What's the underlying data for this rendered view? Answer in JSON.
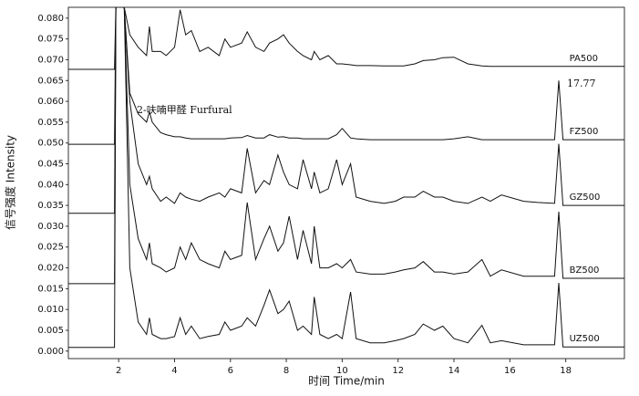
{
  "chart_data": {
    "type": "line",
    "xlabel": "时间 Time/min",
    "ylabel": "信号强度 Intensity",
    "annotations": [
      "2-呋喃甲醛  Furfural",
      "17.77"
    ],
    "xlim": [
      0.2,
      20.1
    ],
    "ylim": [
      -0.0018,
      0.0826
    ],
    "xticks": [
      2,
      4,
      6,
      8,
      10,
      12,
      14,
      16,
      18
    ],
    "yticks": [
      {
        "value": 0,
        "label": "0.000"
      },
      {
        "value": 0.005,
        "label": "0.005"
      },
      {
        "value": 0.01,
        "label": "0.010"
      },
      {
        "value": 0.015,
        "label": "0.015"
      },
      {
        "value": 0.02,
        "label": "0.020"
      },
      {
        "value": 0.025,
        "label": "0.025"
      },
      {
        "value": 0.03,
        "label": "0.030"
      },
      {
        "value": 0.035,
        "label": "0.035"
      },
      {
        "value": 0.04,
        "label": "0.040"
      },
      {
        "value": 0.045,
        "label": "0.045"
      },
      {
        "value": 0.05,
        "label": "0.050"
      },
      {
        "value": 0.055,
        "label": "0.055"
      },
      {
        "value": 0.06,
        "label": "0.060"
      },
      {
        "value": 0.065,
        "label": "0.065"
      },
      {
        "value": 0.07,
        "label": "0.070"
      },
      {
        "value": 0.075,
        "label": "0.075"
      },
      {
        "value": 0.08,
        "label": "0.080"
      }
    ],
    "grid": false,
    "x": [
      0.2,
      1.85,
      1.9,
      2.2,
      2.4,
      2.7,
      3.0,
      3.1,
      3.2,
      3.5,
      3.7,
      4.0,
      4.2,
      4.4,
      4.6,
      4.9,
      5.2,
      5.6,
      5.8,
      6.0,
      6.4,
      6.6,
      6.9,
      7.2,
      7.4,
      7.7,
      7.9,
      8.1,
      8.4,
      8.6,
      8.9,
      9.0,
      9.2,
      9.5,
      9.8,
      10.0,
      10.3,
      10.5,
      11.0,
      11.5,
      11.9,
      12.2,
      12.6,
      12.9,
      13.3,
      13.6,
      14.0,
      14.5,
      15.0,
      15.3,
      15.7,
      16.5,
      17.0,
      17.6,
      17.75,
      17.9,
      18.2,
      20.1
    ],
    "series": [
      {
        "name": "PA500",
        "color": "#111111",
        "values": [
          0.0677,
          0.0677,
          0.0826,
          0.0826,
          0.076,
          0.073,
          0.071,
          0.078,
          0.072,
          0.072,
          0.071,
          0.073,
          0.082,
          0.076,
          0.077,
          0.072,
          0.073,
          0.071,
          0.075,
          0.073,
          0.074,
          0.0767,
          0.073,
          0.072,
          0.074,
          0.075,
          0.076,
          0.074,
          0.072,
          0.071,
          0.07,
          0.072,
          0.07,
          0.071,
          0.069,
          0.069,
          0.0688,
          0.0686,
          0.0686,
          0.0685,
          0.0685,
          0.0685,
          0.069,
          0.0698,
          0.07,
          0.0705,
          0.0706,
          0.069,
          0.0685,
          0.0684,
          0.0684,
          0.0684,
          0.0684,
          0.0684,
          0.0684,
          0.0684,
          0.0684,
          0.0684
        ]
      },
      {
        "name": "FZ500",
        "color": "#111111",
        "values": [
          0.0497,
          0.0497,
          0.0826,
          0.0826,
          0.062,
          0.057,
          0.055,
          0.0575,
          0.055,
          0.0525,
          0.052,
          0.0515,
          0.0515,
          0.0512,
          0.051,
          0.051,
          0.051,
          0.051,
          0.051,
          0.0512,
          0.0513,
          0.0518,
          0.0512,
          0.0512,
          0.052,
          0.0514,
          0.0515,
          0.0512,
          0.0512,
          0.051,
          0.051,
          0.051,
          0.051,
          0.051,
          0.052,
          0.0535,
          0.0512,
          0.051,
          0.0508,
          0.0508,
          0.0508,
          0.0508,
          0.0508,
          0.0508,
          0.0508,
          0.0508,
          0.051,
          0.0515,
          0.0508,
          0.0508,
          0.0508,
          0.0508,
          0.0508,
          0.0508,
          0.065,
          0.0508,
          0.0508,
          0.0508
        ]
      },
      {
        "name": "GZ500",
        "color": "#111111",
        "values": [
          0.0331,
          0.0331,
          0.0826,
          0.0826,
          0.06,
          0.045,
          0.04,
          0.042,
          0.039,
          0.036,
          0.037,
          0.0355,
          0.038,
          0.037,
          0.0365,
          0.036,
          0.037,
          0.038,
          0.037,
          0.039,
          0.038,
          0.0487,
          0.038,
          0.041,
          0.04,
          0.0471,
          0.043,
          0.04,
          0.039,
          0.046,
          0.039,
          0.043,
          0.038,
          0.039,
          0.046,
          0.04,
          0.045,
          0.037,
          0.036,
          0.0355,
          0.036,
          0.037,
          0.037,
          0.0384,
          0.037,
          0.037,
          0.036,
          0.0355,
          0.037,
          0.036,
          0.0375,
          0.036,
          0.0357,
          0.0355,
          0.0498,
          0.035,
          0.035,
          0.035
        ]
      },
      {
        "name": "BZ500",
        "color": "#111111",
        "values": [
          0.0162,
          0.0162,
          0.0826,
          0.0826,
          0.04,
          0.027,
          0.022,
          0.026,
          0.021,
          0.02,
          0.019,
          0.02,
          0.025,
          0.022,
          0.026,
          0.022,
          0.021,
          0.02,
          0.024,
          0.022,
          0.023,
          0.0357,
          0.022,
          0.027,
          0.03,
          0.024,
          0.026,
          0.0324,
          0.022,
          0.029,
          0.021,
          0.03,
          0.02,
          0.02,
          0.021,
          0.02,
          0.022,
          0.019,
          0.0185,
          0.0185,
          0.019,
          0.0195,
          0.02,
          0.0215,
          0.019,
          0.019,
          0.0185,
          0.019,
          0.022,
          0.018,
          0.0195,
          0.018,
          0.018,
          0.018,
          0.0335,
          0.0175,
          0.0175,
          0.0175
        ]
      },
      {
        "name": "UZ500",
        "color": "#111111",
        "values": [
          0.0009,
          0.0009,
          0.0826,
          0.0826,
          0.02,
          0.007,
          0.004,
          0.008,
          0.004,
          0.003,
          0.003,
          0.0035,
          0.008,
          0.004,
          0.006,
          0.003,
          0.0035,
          0.004,
          0.007,
          0.005,
          0.006,
          0.008,
          0.006,
          0.011,
          0.0147,
          0.009,
          0.01,
          0.012,
          0.005,
          0.006,
          0.004,
          0.013,
          0.004,
          0.003,
          0.004,
          0.003,
          0.0142,
          0.003,
          0.002,
          0.002,
          0.0025,
          0.003,
          0.004,
          0.0065,
          0.005,
          0.006,
          0.003,
          0.002,
          0.0062,
          0.002,
          0.0025,
          0.0015,
          0.0015,
          0.0015,
          0.0164,
          0.001,
          0.001,
          0.001
        ]
      }
    ]
  }
}
